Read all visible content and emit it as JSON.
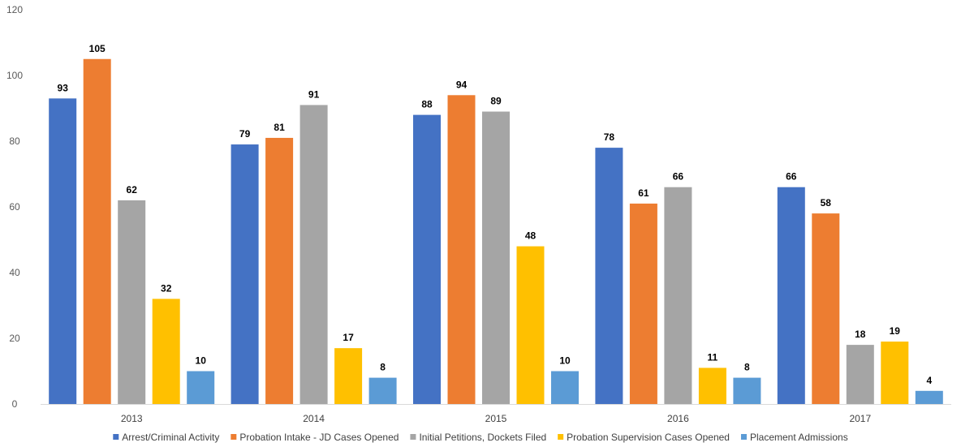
{
  "chart_data": {
    "type": "bar",
    "categories": [
      "2013",
      "2014",
      "2015",
      "2016",
      "2017"
    ],
    "series": [
      {
        "name": "Arrest/Criminal Activity",
        "color": "#4472C4",
        "values": [
          93,
          79,
          88,
          78,
          66
        ]
      },
      {
        "name": "Probation Intake - JD Cases Opened",
        "color": "#ED7D31",
        "values": [
          105,
          81,
          94,
          61,
          58
        ]
      },
      {
        "name": "Initial Petitions, Dockets Filed",
        "color": "#A5A5A5",
        "values": [
          62,
          91,
          89,
          66,
          18
        ]
      },
      {
        "name": "Probation Supervision Cases Opened",
        "color": "#FFC000",
        "values": [
          32,
          17,
          48,
          11,
          19
        ]
      },
      {
        "name": "Placement Admissions",
        "color": "#5B9BD5",
        "values": [
          10,
          8,
          10,
          8,
          4
        ]
      }
    ],
    "ylim": [
      0,
      120
    ],
    "yticks": [
      0,
      20,
      40,
      60,
      80,
      100,
      120
    ],
    "grid": false,
    "legend_position": "bottom",
    "data_labels": true
  }
}
